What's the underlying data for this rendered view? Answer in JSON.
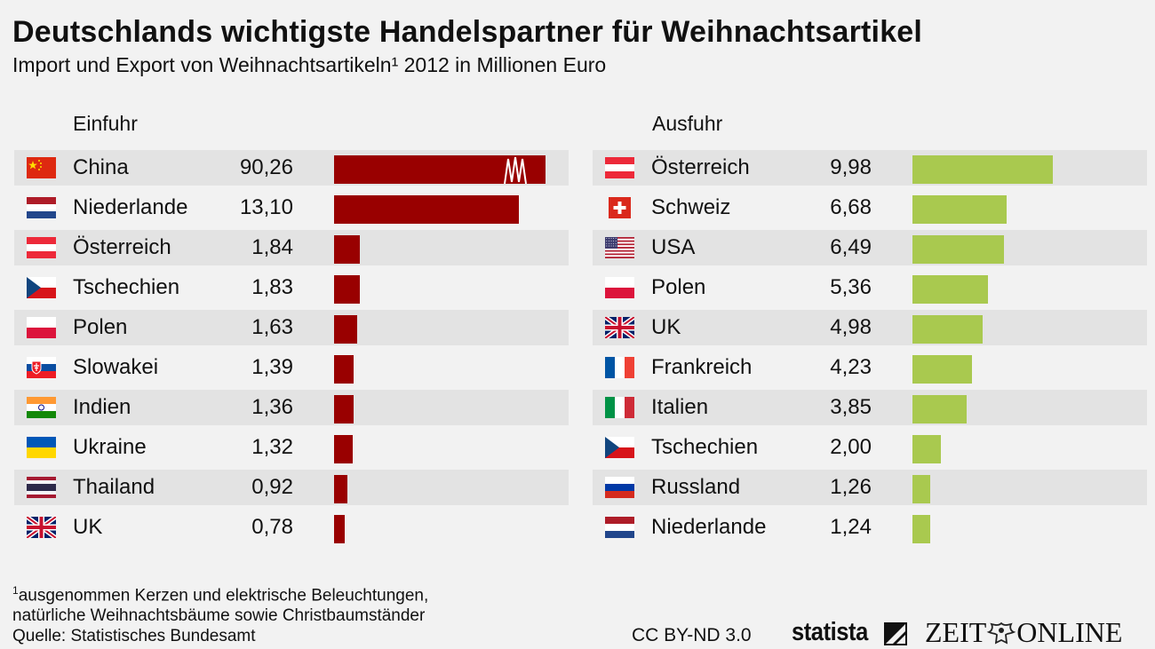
{
  "title": "Deutschlands wichtigste Handelspartner für Weihnachtsartikel",
  "subtitle": "Import und Export von Weihnachtsartikeln¹ 2012 in Millionen Euro",
  "colors": {
    "import": "#990000",
    "export": "#a9c94f",
    "row_shade": "#e3e3e3"
  },
  "chart_data": [
    {
      "type": "bar",
      "orientation": "horizontal",
      "title": "Einfuhr",
      "categories": [
        "China",
        "Niederlande",
        "Österreich",
        "Tschechien",
        "Polen",
        "Slowakei",
        "Indien",
        "Ukraine",
        "Thailand",
        "UK"
      ],
      "flags": [
        "cn",
        "nl",
        "at",
        "cz",
        "pl",
        "sk",
        "in",
        "ua",
        "th",
        "gb"
      ],
      "value_labels": [
        "90,26",
        "13,10",
        "1,84",
        "1,83",
        "1,63",
        "1,39",
        "1,36",
        "1,32",
        "0,92",
        "0,78"
      ],
      "values": [
        90.26,
        13.1,
        1.84,
        1.83,
        1.63,
        1.39,
        1.36,
        1.32,
        0.92,
        0.78
      ],
      "axis_break": {
        "series_index": 0,
        "display_value": 15.0
      },
      "xlim": [
        0,
        15
      ]
    },
    {
      "type": "bar",
      "orientation": "horizontal",
      "title": "Ausfuhr",
      "categories": [
        "Österreich",
        "Schweiz",
        "USA",
        "Polen",
        "UK",
        "Frankreich",
        "Italien",
        "Tschechien",
        "Russland",
        "Niederlande"
      ],
      "flags": [
        "at",
        "ch",
        "us",
        "pl",
        "gb",
        "fr",
        "it",
        "cz",
        "ru",
        "nl"
      ],
      "value_labels": [
        "9,98",
        "6,68",
        "6,49",
        "5,36",
        "4,98",
        "4,23",
        "3,85",
        "2,00",
        "1,26",
        "1,24"
      ],
      "values": [
        9.98,
        6.68,
        6.49,
        5.36,
        4.98,
        4.23,
        3.85,
        2.0,
        1.26,
        1.24
      ],
      "xlim": [
        0,
        20
      ]
    }
  ],
  "footnote": {
    "mark": "1",
    "line1": "ausgenommen Kerzen und elektrische Beleuchtungen,",
    "line2": "natürliche Weihnachtsbäume sowie Christbaumständer",
    "source": "Quelle: Statistisches Bundesamt"
  },
  "license": "CC BY-ND 3.0",
  "brand_statista": "statista",
  "brand_zeit": {
    "left": "ZEIT",
    "right": "ONLINE"
  }
}
